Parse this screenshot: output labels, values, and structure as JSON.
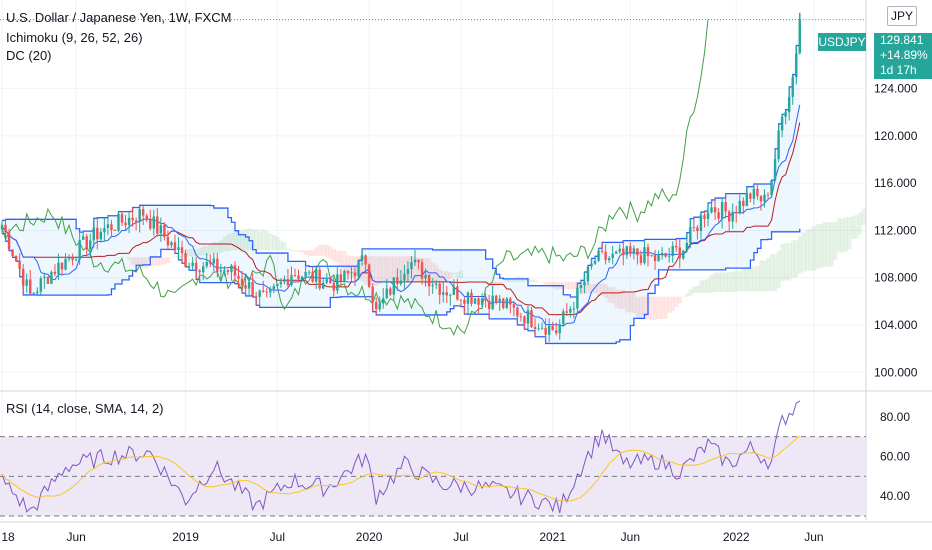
{
  "header": {
    "symbol_line": "U.S. Dollar / Japanese Yen, 1W, FXCM",
    "indicator_1": "Ichimoku (9, 26, 52, 26)",
    "indicator_2": "DC (20)"
  },
  "price_tag": {
    "symbol": "USDJPY",
    "price": "129.841",
    "change": "+14.89%",
    "countdown": "1d 17h"
  },
  "currency_button": "JPY",
  "rsi": {
    "label": "RSI (14, close, SMA, 14, 2)"
  },
  "colors": {
    "up": "#26a69a",
    "down": "#ef5350",
    "donchian": "#2962ff",
    "tenkan": "#2962ff",
    "kijun": "#b71c1c",
    "chikou": "#43a047",
    "rsi_line": "#7e57c2",
    "rsi_sma": "#f9c825",
    "rsi_band": "#ede7f6"
  },
  "chart_data": [
    {
      "type": "candlestick",
      "title": "U.S. Dollar / Japanese Yen, 1W, FXCM",
      "y_ticks": [
        "100.000",
        "104.000",
        "108.000",
        "112.000",
        "116.000",
        "120.000",
        "124.000"
      ],
      "ylim": [
        98.5,
        131.5
      ],
      "x_ticks": [
        "18",
        "Jun",
        "2019",
        "Jul",
        "2020",
        "Jul",
        "2021",
        "Jun",
        "2022",
        "Jun"
      ],
      "last_price": 129.841,
      "close_anchors": [
        {
          "t": 0,
          "v": 112.5
        },
        {
          "t": 8,
          "v": 106.5
        },
        {
          "t": 14,
          "v": 108.5
        },
        {
          "t": 28,
          "v": 112.0
        },
        {
          "t": 40,
          "v": 113.5
        },
        {
          "t": 52,
          "v": 109.5
        },
        {
          "t": 65,
          "v": 108.5
        },
        {
          "t": 75,
          "v": 106.0
        },
        {
          "t": 82,
          "v": 108.5
        },
        {
          "t": 95,
          "v": 107.5
        },
        {
          "t": 103,
          "v": 109.5
        },
        {
          "t": 106,
          "v": 105.0
        },
        {
          "t": 115,
          "v": 109.5
        },
        {
          "t": 125,
          "v": 107.0
        },
        {
          "t": 140,
          "v": 106.0
        },
        {
          "t": 150,
          "v": 104.5
        },
        {
          "t": 157,
          "v": 103.5
        },
        {
          "t": 163,
          "v": 106.5
        },
        {
          "t": 168,
          "v": 109.5
        },
        {
          "t": 180,
          "v": 110.0
        },
        {
          "t": 186,
          "v": 109.5
        },
        {
          "t": 193,
          "v": 110.5
        },
        {
          "t": 200,
          "v": 114.0
        },
        {
          "t": 206,
          "v": 113.5
        },
        {
          "t": 212,
          "v": 115.0
        },
        {
          "t": 216,
          "v": 114.5
        },
        {
          "t": 218,
          "v": 116.5
        },
        {
          "t": 221,
          "v": 121.5
        },
        {
          "t": 224,
          "v": 125.0
        },
        {
          "t": 226,
          "v": 129.8
        }
      ],
      "series_names": [
        "Ichimoku (9, 26, 52, 26)",
        "DC (20)"
      ]
    },
    {
      "type": "line",
      "title": "RSI (14, close, SMA, 14, 2)",
      "y_ticks": [
        "40.00",
        "60.00",
        "80.00"
      ],
      "ylim": [
        28,
        92
      ],
      "bands": [
        30,
        50,
        70
      ],
      "rsi_anchors": [
        {
          "t": 0,
          "v": 48
        },
        {
          "t": 8,
          "v": 32
        },
        {
          "t": 18,
          "v": 55
        },
        {
          "t": 30,
          "v": 60
        },
        {
          "t": 42,
          "v": 62
        },
        {
          "t": 52,
          "v": 38
        },
        {
          "t": 60,
          "v": 55
        },
        {
          "t": 72,
          "v": 35
        },
        {
          "t": 82,
          "v": 48
        },
        {
          "t": 92,
          "v": 44
        },
        {
          "t": 103,
          "v": 60
        },
        {
          "t": 106,
          "v": 40
        },
        {
          "t": 114,
          "v": 56
        },
        {
          "t": 124,
          "v": 46
        },
        {
          "t": 138,
          "v": 44
        },
        {
          "t": 152,
          "v": 38
        },
        {
          "t": 158,
          "v": 34
        },
        {
          "t": 165,
          "v": 58
        },
        {
          "t": 170,
          "v": 72
        },
        {
          "t": 176,
          "v": 56
        },
        {
          "t": 186,
          "v": 58
        },
        {
          "t": 192,
          "v": 52
        },
        {
          "t": 200,
          "v": 66
        },
        {
          "t": 206,
          "v": 56
        },
        {
          "t": 212,
          "v": 64
        },
        {
          "t": 218,
          "v": 57
        },
        {
          "t": 221,
          "v": 78
        },
        {
          "t": 226,
          "v": 88
        }
      ]
    }
  ]
}
